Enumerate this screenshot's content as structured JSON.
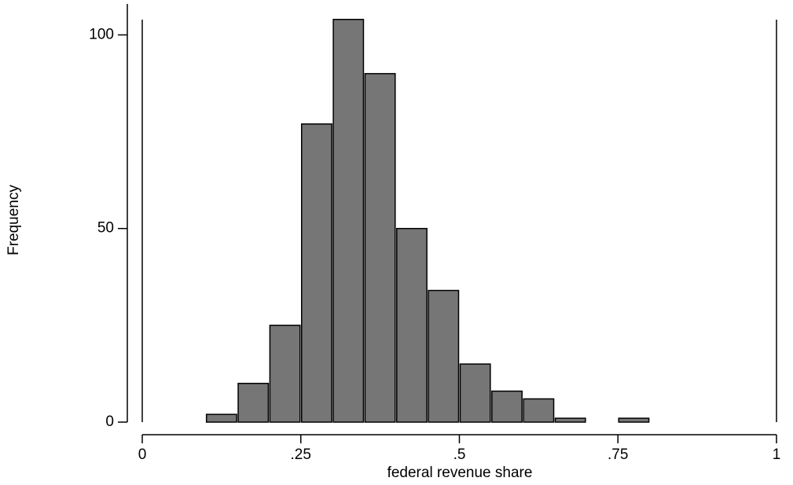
{
  "chart_data": {
    "type": "histogram",
    "x_label": "federal revenue share",
    "y_label": "Frequency",
    "bins": [
      0.1,
      0.15,
      0.2,
      0.25,
      0.3,
      0.35,
      0.4,
      0.45,
      0.5,
      0.55,
      0.6,
      0.65,
      0.7,
      0.75,
      0.8
    ],
    "values": [
      2,
      10,
      25,
      77,
      104,
      90,
      50,
      34,
      15,
      8,
      6,
      1,
      0,
      1
    ],
    "color": "#767676",
    "xlim": [
      0,
      1
    ],
    "xticks": [
      0,
      {
        "value": 0.25,
        "label": ".25"
      },
      {
        "value": 0.5,
        "label": ".5"
      },
      {
        "value": 0.75,
        "label": ".75"
      },
      1
    ],
    "ylim": [
      0,
      108
    ],
    "yticks": [
      0,
      50,
      100
    ],
    "xlines": [
      0,
      1
    ],
    "grid": false
  }
}
